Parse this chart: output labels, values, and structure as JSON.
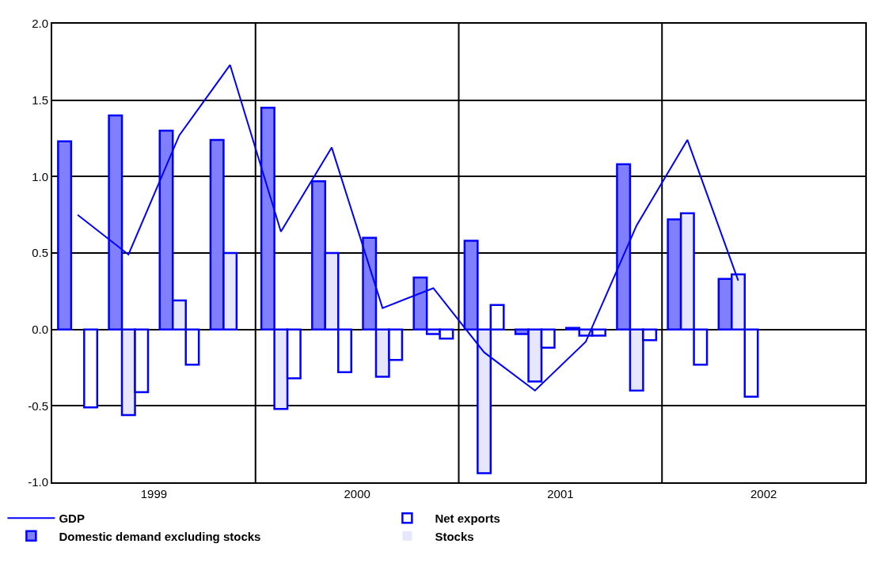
{
  "chart_data": {
    "type": "bar",
    "x": [
      1999.125,
      1999.375,
      1999.625,
      1999.875,
      2000.125,
      2000.375,
      2000.625,
      2000.875,
      2001.125,
      2001.375,
      2001.625,
      2001.875,
      2002.125,
      2002.375
    ],
    "xlim": [
      1999,
      2003
    ],
    "xticks": [
      {
        "value": 1999.5,
        "label": "1999"
      },
      {
        "value": 2000,
        "label": null
      },
      {
        "value": 2000.5,
        "label": "2000"
      },
      {
        "value": 2001,
        "label": null
      },
      {
        "value": 2001.5,
        "label": "2001"
      },
      {
        "value": 2002,
        "label": null
      },
      {
        "value": 2002.5,
        "label": "2002"
      }
    ],
    "ylim": [
      -1,
      2
    ],
    "yticks": [
      {
        "value": -1,
        "label": "-1.0"
      },
      {
        "value": -0.5,
        "label": "-0.5"
      },
      {
        "value": 0,
        "label": "0.0"
      },
      {
        "value": 0.5,
        "label": "0.5"
      },
      {
        "value": 1,
        "label": "1.0"
      },
      {
        "value": 1.5,
        "label": "1.5"
      },
      {
        "value": 2,
        "label": "2.0"
      }
    ],
    "grid": true,
    "legend": "bottom",
    "series": [
      {
        "name": "GDP",
        "type": "line",
        "color": "#0000ff",
        "values": [
          0.75,
          0.49,
          1.27,
          1.73,
          0.64,
          1.19,
          0.14,
          0.27,
          -0.15,
          -0.4,
          -0.08,
          0.68,
          1.24,
          0.32
        ]
      },
      {
        "name": "Domestic demand excluding stocks",
        "color": "#8080ff",
        "values": [
          1.23,
          1.4,
          1.3,
          1.24,
          1.45,
          0.97,
          0.6,
          0.34,
          0.58,
          -0.03,
          0.01,
          1.08,
          0.72,
          0.33
        ]
      },
      {
        "name": "Stocks",
        "color": "#e6e6fc",
        "values": [
          0,
          -0.56,
          0.19,
          0.5,
          -0.52,
          0.5,
          -0.31,
          -0.03,
          -0.94,
          -0.34,
          -0.04,
          -0.4,
          0.76,
          0.36
        ]
      },
      {
        "name": "Net exports",
        "color": "#ffffff",
        "values": [
          -0.51,
          -0.41,
          -0.23,
          0,
          -0.32,
          -0.28,
          -0.2,
          -0.06,
          0.16,
          -0.12,
          -0.04,
          -0.07,
          -0.23,
          -0.44
        ]
      }
    ]
  }
}
